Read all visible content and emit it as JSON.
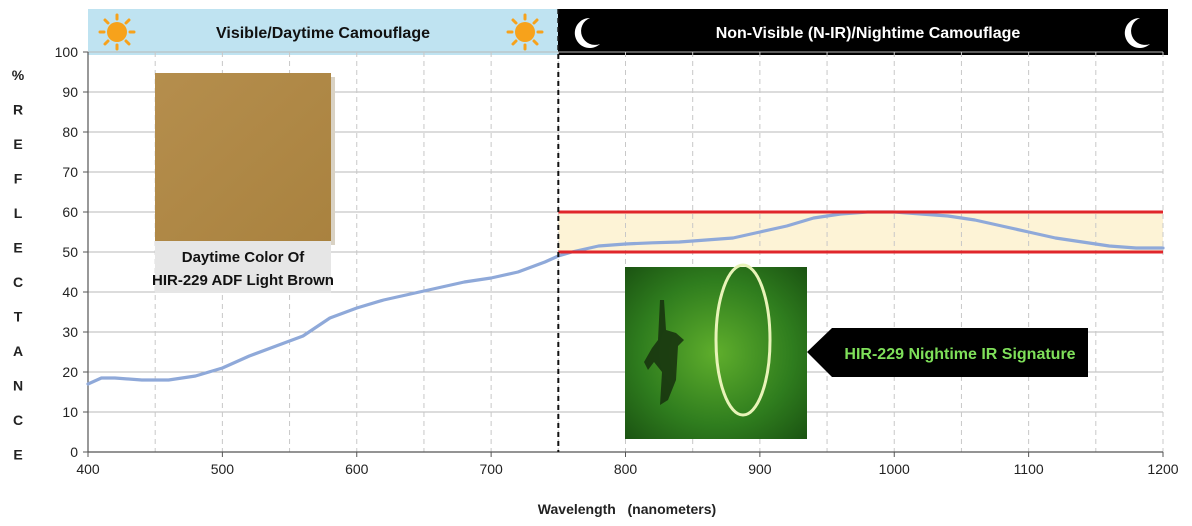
{
  "banners": {
    "visible": "Visible/Daytime Camouflage",
    "nonvisible": "Non-Visible (N-IR)/Nightime Camouflage"
  },
  "icons": [
    "sun-icon",
    "moon-icon"
  ],
  "swatch": {
    "label_line1": "Daytime Color Of",
    "label_line2": "HIR-229 ADF Light Brown",
    "color": "#b08a4a"
  },
  "ir_callout": {
    "label": "HIR-229 Nightime IR Signature"
  },
  "colors": {
    "curve": "#8fa9d9",
    "band_lines": "#e0262b",
    "band_fill": "#fdf3d6",
    "day_banner": "#bfe3f1",
    "night_banner": "#000000",
    "sun": "#f7a21b",
    "ir_text": "#7fe05a"
  },
  "chart_data": {
    "type": "line",
    "xlabel": "Wavelength   (nanometers)",
    "ylabel": "% REFLECTANCE",
    "ylabel_letters": [
      "%",
      "R",
      "E",
      "F",
      "L",
      "E",
      "C",
      "T",
      "A",
      "N",
      "C",
      "E"
    ],
    "xlim": [
      400,
      1200
    ],
    "ylim": [
      0,
      100
    ],
    "xticks": [
      400,
      500,
      600,
      700,
      800,
      900,
      1000,
      1100,
      1200
    ],
    "yticks": [
      0,
      10,
      20,
      30,
      40,
      50,
      60,
      70,
      80,
      90,
      100
    ],
    "grid": true,
    "divider_x": 750,
    "band": {
      "low": 50,
      "high": 60,
      "x_from": 750,
      "x_to": 1200
    },
    "series": [
      {
        "x": [
          400,
          410,
          420,
          440,
          460,
          480,
          500,
          520,
          540,
          560,
          580,
          600,
          620,
          640,
          660,
          680,
          700,
          720,
          740,
          750,
          760,
          780,
          800,
          820,
          840,
          860,
          880,
          900,
          920,
          940,
          960,
          980,
          1000,
          1020,
          1040,
          1060,
          1080,
          1100,
          1120,
          1140,
          1160,
          1180,
          1200
        ],
        "values": [
          17,
          18.5,
          18.5,
          18,
          18,
          19,
          21,
          24,
          26.5,
          29,
          33.5,
          36,
          38,
          39.5,
          41,
          42.5,
          43.5,
          45,
          47.5,
          49,
          50,
          51.5,
          52,
          52.3,
          52.5,
          53,
          53.5,
          55,
          56.5,
          58.5,
          59.5,
          60,
          60,
          59.5,
          59,
          58,
          56.5,
          55,
          53.5,
          52.5,
          51.5,
          51,
          51
        ]
      }
    ]
  }
}
